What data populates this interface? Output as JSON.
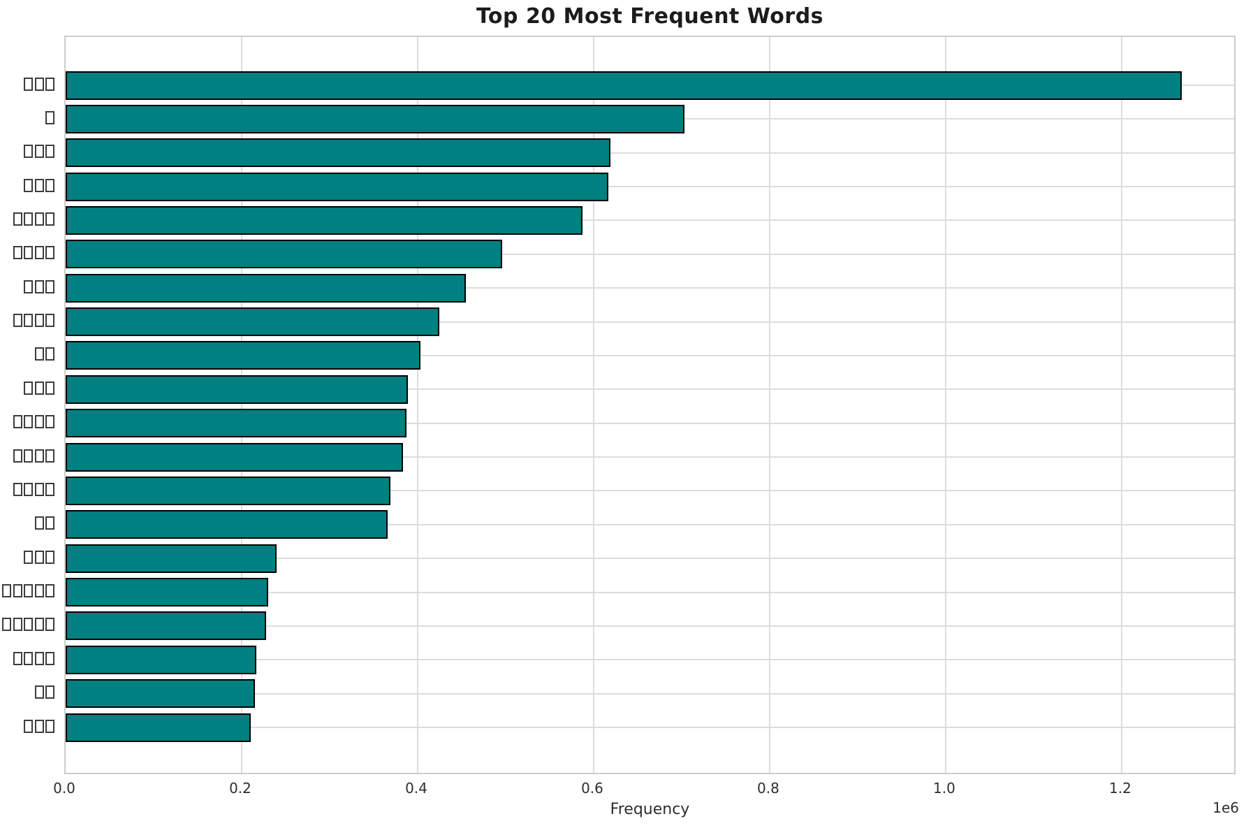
{
  "colors": {
    "bar_fill": "#008080",
    "bar_edge": "#000000",
    "grid": "#dcdcdc",
    "spine": "#cccccc",
    "text": "#2e2e2e",
    "title_text": "#1c1c1c"
  },
  "chart_data": {
    "type": "bar",
    "orientation": "horizontal",
    "title": "Top 20 Most Frequent Words",
    "xlabel": "Frequency",
    "ylabel": "",
    "x_offset_label": "1e6",
    "xlim": [
      0,
      1331000
    ],
    "grid": true,
    "legend": false,
    "categories": [
      "▯▯▯",
      "▯",
      "▯▯▯",
      "▯▯▯",
      "▯▯▯▯",
      "▯▯▯▯",
      "▯▯▯",
      "▯▯▯▯",
      "▯▯",
      "▯▯▯",
      "▯▯▯▯",
      "▯▯▯▯",
      "▯▯▯▯",
      "▯▯",
      "▯▯▯",
      "▯▯▯▯▯",
      "▯▯▯▯▯",
      "▯▯▯▯",
      "▯▯",
      "▯▯▯"
    ],
    "values": [
      1268000,
      703000,
      619000,
      617000,
      587000,
      496000,
      455000,
      425000,
      403000,
      389000,
      387000,
      383000,
      369000,
      366000,
      240000,
      230000,
      228000,
      217000,
      215000,
      210000
    ],
    "xticks": [
      {
        "label": "0.0",
        "value": 0
      },
      {
        "label": "0.2",
        "value": 200000
      },
      {
        "label": "0.4",
        "value": 400000
      },
      {
        "label": "0.6",
        "value": 600000
      },
      {
        "label": "0.8",
        "value": 800000
      },
      {
        "label": "1.0",
        "value": 1000000
      },
      {
        "label": "1.2",
        "value": 1200000
      }
    ]
  }
}
